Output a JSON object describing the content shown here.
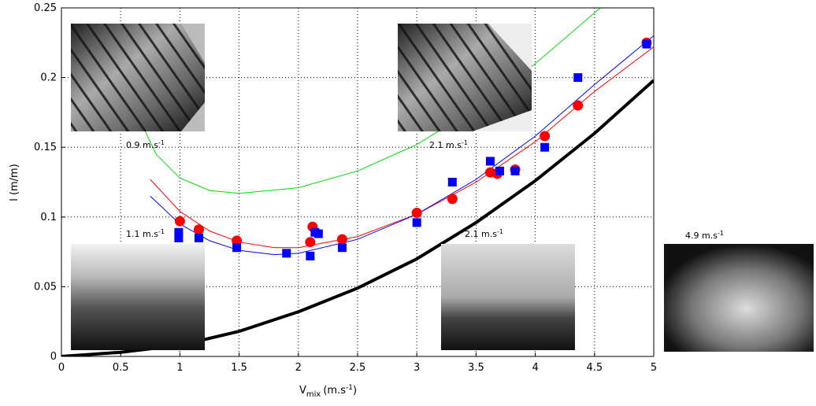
{
  "chart_data": {
    "type": "scatter",
    "xlabel": {
      "base": "V",
      "sub": "mix",
      "unit": "(m.s",
      "sup": "-1",
      "end": ")"
    },
    "ylabel": "l (m/m)",
    "xlim": [
      0,
      5
    ],
    "ylim": [
      0,
      0.25
    ],
    "xticks": [
      0,
      0.5,
      1,
      1.5,
      2,
      2.5,
      3,
      3.5,
      4,
      4.5,
      5
    ],
    "yticks": [
      0,
      0.05,
      0.1,
      0.15,
      0.2,
      0.25
    ],
    "grid": true,
    "series": [
      {
        "color": "#ff0000",
        "marker": "circle",
        "x": [
          1.0,
          1.16,
          1.48,
          2.1,
          2.12,
          2.37,
          3.0,
          3.3,
          3.62,
          3.68,
          3.83,
          4.08,
          4.36,
          4.94
        ],
        "y": [
          0.097,
          0.091,
          0.083,
          0.082,
          0.093,
          0.084,
          0.103,
          0.113,
          0.132,
          0.131,
          0.134,
          0.158,
          0.18,
          0.225
        ]
      },
      {
        "color": "#0000ff",
        "marker": "square",
        "x": [
          0.99,
          0.99,
          1.16,
          1.48,
          1.9,
          2.1,
          2.14,
          2.17,
          2.37,
          3.0,
          3.3,
          3.62,
          3.7,
          3.83,
          4.08,
          4.36,
          4.94
        ],
        "y": [
          0.085,
          0.089,
          0.085,
          0.078,
          0.074,
          0.072,
          0.089,
          0.088,
          0.078,
          0.096,
          0.125,
          0.14,
          0.133,
          0.133,
          0.15,
          0.2,
          0.224
        ]
      }
    ],
    "curves": [
      {
        "color": "#00dd00",
        "width": 1,
        "x": [
          0.66,
          0.8,
          1.0,
          1.25,
          1.5,
          2,
          2.5,
          3,
          3.5,
          4,
          4.55
        ],
        "y": [
          0.17,
          0.145,
          0.128,
          0.119,
          0.117,
          0.121,
          0.133,
          0.152,
          0.178,
          0.21,
          0.25
        ]
      },
      {
        "color": "#ff0000",
        "width": 1,
        "x": [
          0.75,
          1,
          1.25,
          1.5,
          1.8,
          2,
          2.5,
          3,
          3.5,
          4,
          4.5,
          5
        ],
        "y": [
          0.127,
          0.104,
          0.09,
          0.082,
          0.078,
          0.078,
          0.086,
          0.102,
          0.125,
          0.154,
          0.19,
          0.222
        ]
      },
      {
        "color": "#0000ff",
        "width": 1,
        "x": [
          0.75,
          1,
          1.25,
          1.5,
          1.8,
          2,
          2.5,
          3,
          3.5,
          4,
          4.5,
          5
        ],
        "y": [
          0.115,
          0.095,
          0.083,
          0.076,
          0.073,
          0.074,
          0.084,
          0.102,
          0.127,
          0.158,
          0.195,
          0.23
        ]
      },
      {
        "color": "#000000",
        "width": 4,
        "x": [
          0,
          0.5,
          1,
          1.5,
          2,
          2.5,
          3,
          3.5,
          4,
          4.5,
          5
        ],
        "y": [
          0,
          0.003,
          0.008,
          0.018,
          0.032,
          0.049,
          0.07,
          0.096,
          0.126,
          0.16,
          0.198
        ]
      }
    ],
    "insets": [
      {
        "base": "0.9 m.s",
        "sup": "-1"
      },
      {
        "base": "2.1 m.s",
        "sup": "-1"
      },
      {
        "base": "1.1 m.s",
        "sup": "-1"
      },
      {
        "base": "2.1 m.s",
        "sup": "-1"
      },
      {
        "base": "4.9 m.s",
        "sup": "-1"
      }
    ]
  }
}
